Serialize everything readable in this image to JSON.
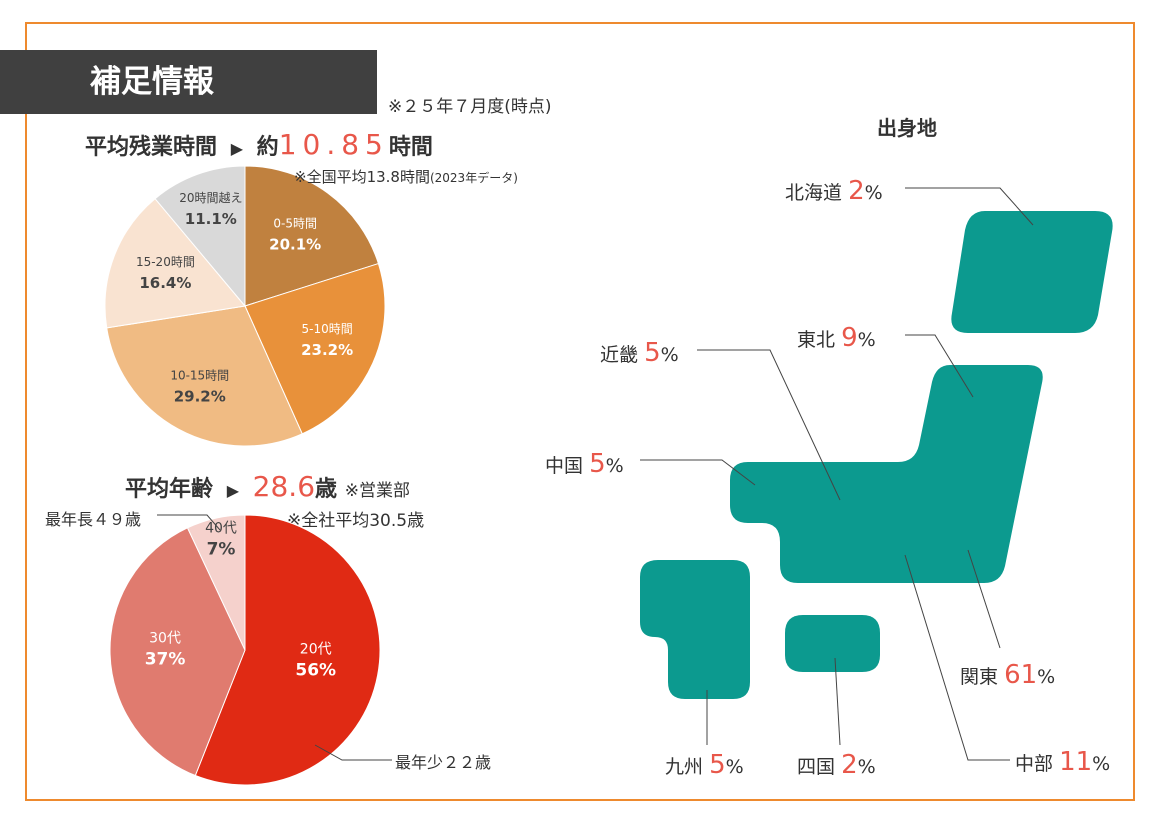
{
  "banner": "補足情報",
  "date_note": "※２５年７月度(時点)",
  "overtime": {
    "label": "平均残業時間",
    "arrow": "▶",
    "prefix": "約",
    "value": "10.85",
    "unit": "時間",
    "note": "※全国平均13.8時間",
    "note_small": "(2023年データ)"
  },
  "age": {
    "label": "平均年齢",
    "arrow": "▶",
    "value": "28.6",
    "unit": "歳",
    "dept": "※営業部",
    "note": "※全社平均30.5歳",
    "oldest": "最年長４９歳",
    "youngest": "最年少２２歳"
  },
  "map": {
    "title": "出身地",
    "color": "#0c9a8f",
    "regions": [
      {
        "name": "北海道",
        "value": "2",
        "unit": "%"
      },
      {
        "name": "東北",
        "value": "9",
        "unit": "%"
      },
      {
        "name": "近畿",
        "value": "5",
        "unit": "%"
      },
      {
        "name": "中国",
        "value": "5",
        "unit": "%"
      },
      {
        "name": "関東",
        "value": "61",
        "unit": "%"
      },
      {
        "name": "中部",
        "value": "11",
        "unit": "%"
      },
      {
        "name": "九州",
        "value": "5",
        "unit": "%"
      },
      {
        "name": "四国",
        "value": "2",
        "unit": "%"
      }
    ]
  },
  "chart_data": [
    {
      "type": "pie",
      "title": "平均残業時間",
      "categories": [
        "0-5時間",
        "5-10時間",
        "10-15時間",
        "15-20時間",
        "20時間越え"
      ],
      "values": [
        20.1,
        23.2,
        29.2,
        16.4,
        11.1
      ],
      "labels": [
        "20.1%",
        "23.2%",
        "29.2%",
        "16.4%",
        "11.1%"
      ],
      "colors": [
        "#c0813f",
        "#e8913a",
        "#f0bb83",
        "#f9e3d1",
        "#d9d9d9"
      ],
      "text_colors": [
        "#fff",
        "#fff",
        "#444",
        "#444",
        "#444"
      ]
    },
    {
      "type": "pie",
      "title": "平均年齢",
      "categories": [
        "20代",
        "30代",
        "40代"
      ],
      "values": [
        56,
        37,
        7
      ],
      "labels": [
        "56%",
        "37%",
        "7%"
      ],
      "colors": [
        "#e02a14",
        "#e07b6f",
        "#f5d1cc"
      ],
      "text_colors": [
        "#fff",
        "#fff",
        "#444"
      ],
      "order": "20代 clockwise from top"
    }
  ]
}
